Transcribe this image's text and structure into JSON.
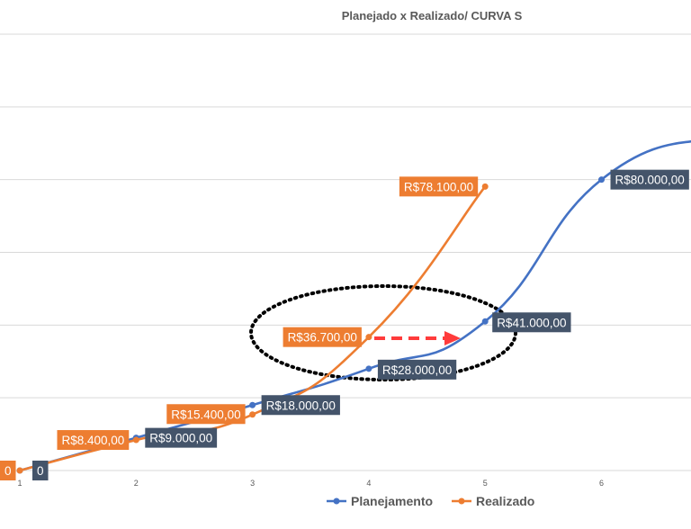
{
  "chart_data": {
    "type": "line",
    "title": "Planejado x Realizado/ CURVA S",
    "xlabel": "",
    "ylabel": "",
    "x_ticks": [
      "1",
      "2",
      "3",
      "4",
      "5",
      "6"
    ],
    "xlim": [
      1,
      7.75
    ],
    "ylim": [
      0,
      120000
    ],
    "grid": true,
    "legend_position": "bottom",
    "series": [
      {
        "name": "Planejamento",
        "color": "#4472C4",
        "label_bg": "#44546A",
        "points": [
          {
            "x": 1,
            "y": 0,
            "label": "0"
          },
          {
            "x": 2,
            "y": 9000,
            "label": "R$9.000,00"
          },
          {
            "x": 3,
            "y": 18000,
            "label": "R$18.000,00"
          },
          {
            "x": 4,
            "y": 28000,
            "label": "R$28.000,00"
          },
          {
            "x": 5,
            "y": 41000,
            "label": "R$41.000,00"
          },
          {
            "x": 6,
            "y": 80000,
            "label": "R$80.000,00"
          },
          {
            "x": 7,
            "y": 92000,
            "label": ""
          }
        ]
      },
      {
        "name": "Realizado",
        "color": "#ED7D31",
        "label_bg": "#ED7D31",
        "points": [
          {
            "x": 1,
            "y": 0,
            "label": "0"
          },
          {
            "x": 2,
            "y": 8400,
            "label": "R$8.400,00"
          },
          {
            "x": 3,
            "y": 15400,
            "label": "R$15.400,00"
          },
          {
            "x": 4,
            "y": 36700,
            "label": "R$36.700,00"
          },
          {
            "x": 5,
            "y": 78100,
            "label": "R$78.100,00"
          }
        ]
      }
    ],
    "annotations": {
      "dotted_ellipse_color": "#000000",
      "dashed_arrow_color": "#FF3B3B"
    }
  }
}
